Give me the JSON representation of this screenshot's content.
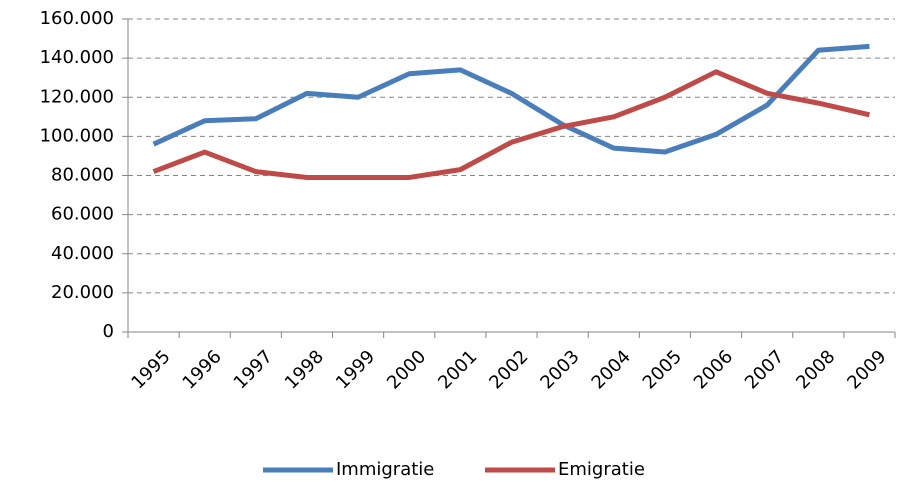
{
  "chart_data": {
    "type": "line",
    "categories": [
      "1995",
      "1996",
      "1997",
      "1998",
      "1999",
      "2000",
      "2001",
      "2002",
      "2003",
      "2004",
      "2005",
      "2006",
      "2007",
      "2008",
      "2009"
    ],
    "series": [
      {
        "name": "Immigratie",
        "color": "#4a7ebb",
        "values": [
          96000,
          108000,
          109000,
          122000,
          120000,
          132000,
          134000,
          122000,
          106000,
          94000,
          92000,
          101000,
          116000,
          144000,
          146000
        ]
      },
      {
        "name": "Emigratie",
        "color": "#be4b48",
        "values": [
          82000,
          92000,
          82000,
          79000,
          79000,
          79000,
          83000,
          97000,
          105000,
          110000,
          120000,
          133000,
          122000,
          117000,
          111000
        ]
      }
    ],
    "ylim": [
      0,
      160000
    ],
    "yticks": [
      0,
      {
        "value": 20000,
        "label": "20.000"
      },
      {
        "value": 40000,
        "label": "40.000"
      },
      {
        "value": 60000,
        "label": "60.000"
      },
      {
        "value": 80000,
        "label": "80.000"
      },
      {
        "value": 100000,
        "label": "100.000"
      },
      {
        "value": 120000,
        "label": "120.000"
      },
      {
        "value": 140000,
        "label": "140.000"
      },
      {
        "value": 160000,
        "label": "160.000"
      }
    ],
    "grid": true,
    "legend": "bottom"
  }
}
